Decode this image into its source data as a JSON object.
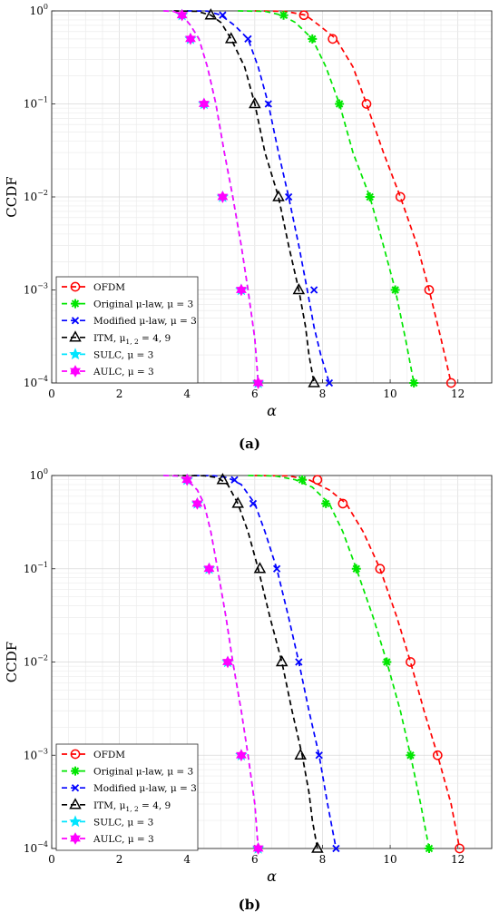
{
  "charts_common": {
    "ylabel": "CCDF",
    "xlabel": "α",
    "xticks": [
      "0",
      "2",
      "4",
      "6",
      "8",
      "10",
      "12"
    ],
    "yticks": [
      {
        "base": "10",
        "exp": "0"
      },
      {
        "base": "10",
        "exp": "−1"
      },
      {
        "base": "10",
        "exp": "−2"
      },
      {
        "base": "10",
        "exp": "−3"
      },
      {
        "base": "10",
        "exp": "−4"
      }
    ],
    "legend": [
      {
        "text": "OFDM"
      },
      {
        "text": "Original μ-law, μ = 3"
      },
      {
        "text": "Modified μ-law, μ = 3"
      },
      {
        "text": "ITM, μ1, 2 = 4, 9"
      },
      {
        "text": "SULC, μ = 3"
      },
      {
        "text": "AULC, μ = 3"
      }
    ],
    "colors": {
      "ofdm": "#ff0000",
      "orig": "#00e600",
      "mod": "#0000ff",
      "itm": "#000000",
      "sulc": "#00e5ff",
      "aulc": "#ff00ff"
    }
  },
  "chart_data": [
    {
      "type": "line",
      "caption": "(a)",
      "xlim": [
        0,
        13
      ],
      "ylim": [
        0.0001,
        1
      ],
      "yscale": "log",
      "grid": true,
      "legend_position": "bottom-left",
      "series": [
        {
          "name": "OFDM",
          "marker": "circle",
          "color": "#ff0000",
          "x": [
            6.0,
            6.9,
            7.5,
            7.9,
            8.4,
            8.9,
            9.3,
            9.8,
            10.3,
            10.8,
            11.15,
            11.5,
            11.8
          ],
          "y": [
            1,
            0.99,
            0.9,
            0.7,
            0.5,
            0.25,
            0.1,
            0.03,
            0.01,
            0.003,
            0.001,
            0.0003,
            0.0001
          ],
          "marker_x": [
            7.45,
            8.3,
            9.3,
            10.3,
            11.15,
            11.8
          ],
          "marker_y": [
            0.9,
            0.5,
            0.1,
            0.01,
            0.001,
            0.0001
          ]
        },
        {
          "name": "Original μ-law, μ = 3",
          "marker": "asterisk",
          "color": "#00e600",
          "x": [
            5.5,
            6.3,
            6.8,
            7.2,
            7.7,
            8.1,
            8.5,
            8.9,
            9.4,
            9.8,
            10.15,
            10.45,
            10.7
          ],
          "y": [
            1,
            0.99,
            0.9,
            0.75,
            0.5,
            0.25,
            0.1,
            0.03,
            0.01,
            0.003,
            0.001,
            0.0003,
            0.0001
          ],
          "marker_x": [
            6.85,
            7.7,
            8.5,
            9.4,
            10.15,
            10.7
          ],
          "marker_y": [
            0.9,
            0.5,
            0.1,
            0.01,
            0.001,
            0.0001
          ]
        },
        {
          "name": "Modified μ-law, μ = 3",
          "marker": "x",
          "color": "#0000ff",
          "x": [
            4.0,
            4.6,
            5.0,
            5.4,
            5.8,
            6.1,
            6.4,
            6.7,
            7.0,
            7.3,
            7.55,
            7.75,
            7.95,
            8.2
          ],
          "y": [
            1,
            0.995,
            0.9,
            0.7,
            0.5,
            0.25,
            0.1,
            0.03,
            0.01,
            0.003,
            0.001,
            0.0004,
            0.0002,
            0.0001
          ],
          "marker_x": [
            5.05,
            5.8,
            6.4,
            7.0,
            7.75,
            8.2
          ],
          "marker_y": [
            0.9,
            0.5,
            0.1,
            0.01,
            0.001,
            0.0001
          ]
        },
        {
          "name": "ITM, μ1, 2 = 4, 9",
          "marker": "triangle",
          "color": "#000000",
          "x": [
            3.6,
            4.3,
            4.7,
            5.0,
            5.3,
            5.7,
            6.0,
            6.3,
            6.7,
            7.0,
            7.3,
            7.5,
            7.6,
            7.75
          ],
          "y": [
            1,
            0.99,
            0.9,
            0.75,
            0.5,
            0.25,
            0.1,
            0.03,
            0.01,
            0.003,
            0.001,
            0.0004,
            0.0002,
            0.0001
          ],
          "marker_x": [
            4.7,
            5.3,
            6.0,
            6.7,
            7.3,
            7.75
          ],
          "marker_y": [
            0.9,
            0.5,
            0.1,
            0.01,
            0.001,
            0.0001
          ]
        },
        {
          "name": "SULC, μ = 3",
          "marker": "star",
          "color": "#00e5ff",
          "x": [
            3.3,
            3.6,
            3.85,
            4.1,
            4.35,
            4.6,
            4.85,
            5.1,
            5.35,
            5.6,
            5.8,
            6.0,
            6.1
          ],
          "y": [
            1,
            0.99,
            0.9,
            0.7,
            0.5,
            0.25,
            0.1,
            0.03,
            0.01,
            0.003,
            0.001,
            0.0003,
            0.0001
          ],
          "marker_x": [
            3.85,
            4.1,
            4.5,
            5.05,
            5.6,
            6.1
          ],
          "marker_y": [
            0.9,
            0.5,
            0.1,
            0.01,
            0.001,
            0.0001
          ]
        },
        {
          "name": "AULC, μ = 3",
          "marker": "hexagram",
          "color": "#ff00ff",
          "x": [
            3.3,
            3.6,
            3.85,
            4.1,
            4.35,
            4.6,
            4.85,
            5.1,
            5.35,
            5.6,
            5.8,
            6.0,
            6.1
          ],
          "y": [
            1,
            0.99,
            0.9,
            0.7,
            0.5,
            0.25,
            0.1,
            0.03,
            0.01,
            0.003,
            0.001,
            0.0003,
            0.0001
          ],
          "marker_x": [
            3.85,
            4.1,
            4.5,
            5.05,
            5.6,
            6.1
          ],
          "marker_y": [
            0.9,
            0.5,
            0.1,
            0.01,
            0.001,
            0.0001
          ]
        }
      ]
    },
    {
      "type": "line",
      "caption": "(b)",
      "xlim": [
        0,
        13
      ],
      "ylim": [
        0.0001,
        1
      ],
      "yscale": "log",
      "grid": true,
      "legend_position": "bottom-left",
      "series": [
        {
          "name": "OFDM",
          "marker": "circle",
          "color": "#ff0000",
          "x": [
            6.0,
            7.0,
            7.6,
            8.2,
            8.7,
            9.2,
            9.7,
            10.2,
            10.6,
            11.0,
            11.4,
            11.8,
            12.05
          ],
          "y": [
            1,
            0.99,
            0.9,
            0.7,
            0.5,
            0.25,
            0.1,
            0.03,
            0.01,
            0.003,
            0.001,
            0.0003,
            0.0001
          ],
          "marker_x": [
            7.85,
            8.6,
            9.7,
            10.6,
            11.4,
            12.05
          ],
          "marker_y": [
            0.9,
            0.5,
            0.1,
            0.01,
            0.001,
            0.0001
          ]
        },
        {
          "name": "Original μ-law, μ = 3",
          "marker": "asterisk",
          "color": "#00e600",
          "x": [
            5.8,
            6.6,
            7.2,
            7.7,
            8.2,
            8.6,
            9.0,
            9.5,
            9.9,
            10.3,
            10.6,
            10.9,
            11.15
          ],
          "y": [
            1,
            0.99,
            0.9,
            0.75,
            0.5,
            0.25,
            0.1,
            0.03,
            0.01,
            0.003,
            0.001,
            0.0003,
            0.0001
          ],
          "marker_x": [
            7.4,
            8.1,
            9.0,
            9.9,
            10.6,
            11.15
          ],
          "marker_y": [
            0.9,
            0.5,
            0.1,
            0.01,
            0.001,
            0.0001
          ]
        },
        {
          "name": "Modified μ-law, μ = 3",
          "marker": "x",
          "color": "#0000ff",
          "x": [
            4.2,
            4.8,
            5.2,
            5.6,
            6.0,
            6.3,
            6.65,
            7.0,
            7.3,
            7.6,
            7.9,
            8.15,
            8.4
          ],
          "y": [
            1,
            0.995,
            0.95,
            0.8,
            0.5,
            0.25,
            0.1,
            0.03,
            0.01,
            0.003,
            0.001,
            0.0003,
            0.0001
          ],
          "marker_x": [
            5.4,
            5.95,
            6.65,
            7.3,
            7.9,
            8.4
          ],
          "marker_y": [
            0.9,
            0.5,
            0.1,
            0.01,
            0.001,
            0.0001
          ]
        },
        {
          "name": "ITM, μ1, 2 = 4, 9",
          "marker": "triangle",
          "color": "#000000",
          "x": [
            3.6,
            4.5,
            4.9,
            5.2,
            5.5,
            5.8,
            6.1,
            6.45,
            6.8,
            7.1,
            7.4,
            7.6,
            7.7,
            7.85
          ],
          "y": [
            1,
            0.995,
            0.95,
            0.8,
            0.5,
            0.25,
            0.1,
            0.03,
            0.01,
            0.003,
            0.001,
            0.0004,
            0.0002,
            0.0001
          ],
          "marker_x": [
            5.05,
            5.5,
            6.15,
            6.8,
            7.35,
            7.85
          ],
          "marker_y": [
            0.9,
            0.5,
            0.1,
            0.01,
            0.001,
            0.0001
          ]
        },
        {
          "name": "SULC, μ = 3",
          "marker": "star",
          "color": "#00e5ff",
          "x": [
            3.3,
            3.7,
            4.0,
            4.3,
            4.5,
            4.7,
            4.9,
            5.15,
            5.35,
            5.6,
            5.8,
            6.0,
            6.1
          ],
          "y": [
            1,
            0.99,
            0.9,
            0.7,
            0.5,
            0.25,
            0.1,
            0.03,
            0.01,
            0.003,
            0.001,
            0.0003,
            0.0001
          ],
          "marker_x": [
            4.0,
            4.3,
            4.65,
            5.2,
            5.6,
            6.1
          ],
          "marker_y": [
            0.9,
            0.5,
            0.1,
            0.01,
            0.001,
            0.0001
          ]
        },
        {
          "name": "AULC, μ = 3",
          "marker": "hexagram",
          "color": "#ff00ff",
          "x": [
            3.3,
            3.7,
            4.0,
            4.3,
            4.5,
            4.7,
            4.9,
            5.15,
            5.35,
            5.6,
            5.8,
            6.0,
            6.1
          ],
          "y": [
            1,
            0.99,
            0.9,
            0.7,
            0.5,
            0.25,
            0.1,
            0.03,
            0.01,
            0.003,
            0.001,
            0.0003,
            0.0001
          ],
          "marker_x": [
            4.0,
            4.3,
            4.65,
            5.2,
            5.6,
            6.1
          ],
          "marker_y": [
            0.9,
            0.5,
            0.1,
            0.01,
            0.001,
            0.0001
          ]
        }
      ]
    }
  ]
}
